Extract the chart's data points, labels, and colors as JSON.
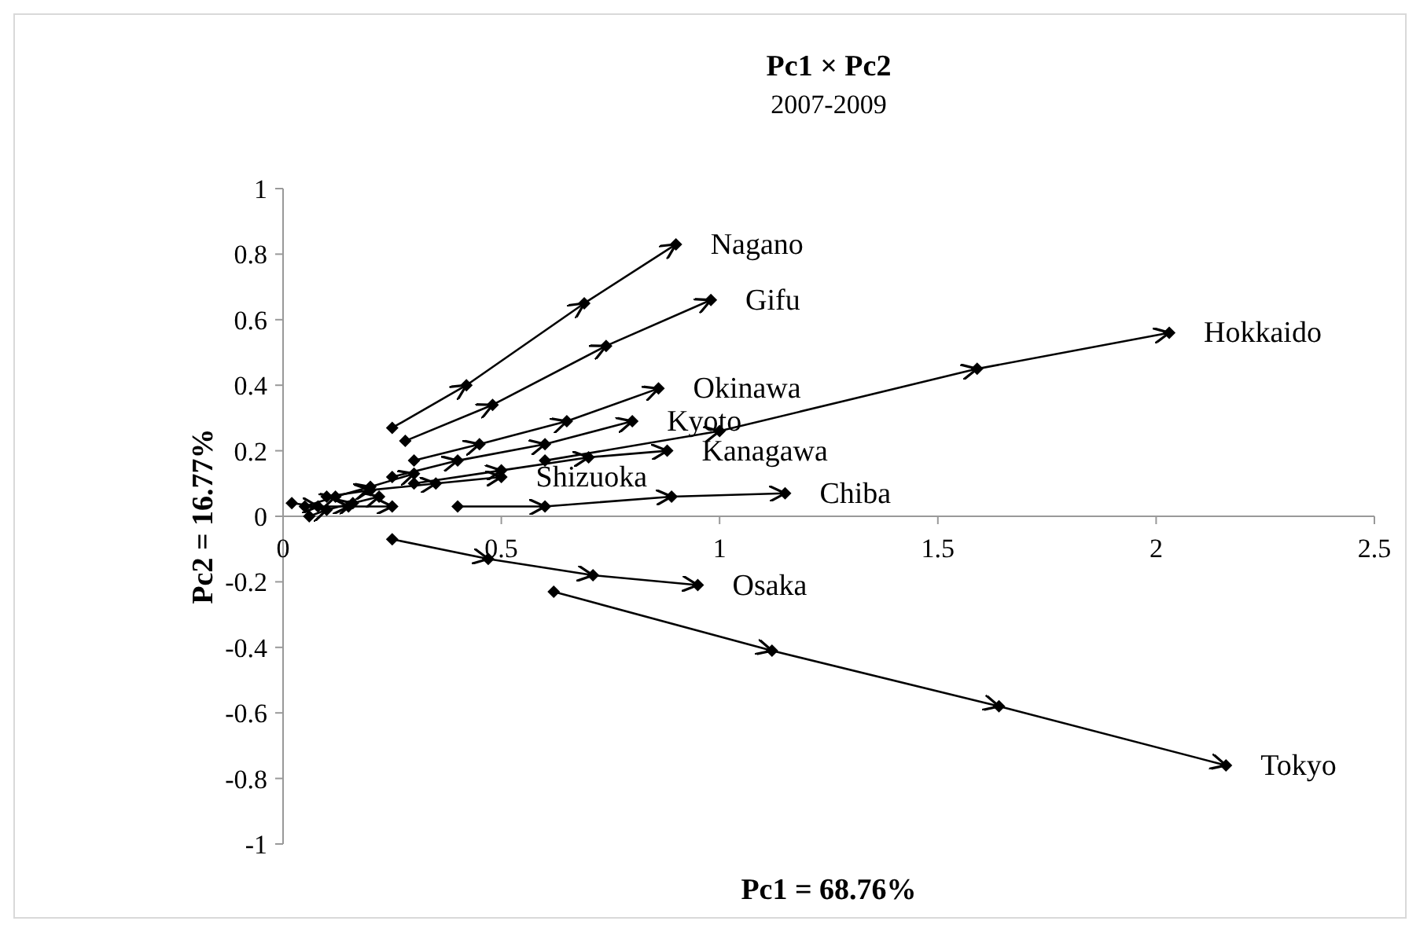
{
  "chart_data": {
    "type": "line",
    "title": "Pc1 × Pc2",
    "subtitle": "2007-2009",
    "xlabel": "Pc1 = 68.76%",
    "ylabel": "Pc2 = 16.77%",
    "xlim": [
      0,
      2.5
    ],
    "xticks": [
      0,
      0.5,
      1,
      1.5,
      2,
      2.5
    ],
    "ylim": [
      -1,
      1
    ],
    "yticks": [
      -1,
      -0.8,
      -0.6,
      -0.4,
      -0.2,
      0,
      0.2,
      0.4,
      0.6,
      0.8,
      1
    ],
    "marker": "diamond",
    "series": [
      {
        "name": "Nagano",
        "color": "#000000",
        "x": [
          0.25,
          0.42,
          0.69,
          0.9
        ],
        "values": [
          0.27,
          0.4,
          0.65,
          0.83
        ]
      },
      {
        "name": "Gifu",
        "color": "#000000",
        "x": [
          0.28,
          0.48,
          0.74,
          0.98
        ],
        "values": [
          0.23,
          0.34,
          0.52,
          0.66
        ]
      },
      {
        "name": "Hokkaido",
        "color": "#000000",
        "x": [
          0.6,
          1.0,
          1.59,
          2.03
        ],
        "values": [
          0.17,
          0.26,
          0.45,
          0.56
        ]
      },
      {
        "name": "Okinawa",
        "color": "#000000",
        "x": [
          0.3,
          0.45,
          0.65,
          0.86
        ],
        "values": [
          0.17,
          0.22,
          0.29,
          0.39
        ]
      },
      {
        "name": "Kyoto",
        "color": "#000000",
        "x": [
          0.25,
          0.4,
          0.6,
          0.8
        ],
        "values": [
          0.12,
          0.17,
          0.22,
          0.29
        ]
      },
      {
        "name": "Kanagawa",
        "color": "#000000",
        "x": [
          0.3,
          0.5,
          0.7,
          0.88
        ],
        "values": [
          0.1,
          0.14,
          0.18,
          0.2
        ]
      },
      {
        "name": "Shizuoka",
        "color": "#000000",
        "x": [
          0.1,
          0.2,
          0.35,
          0.5
        ],
        "values": [
          0.06,
          0.08,
          0.1,
          0.12
        ]
      },
      {
        "name": "Chiba",
        "color": "#000000",
        "x": [
          0.4,
          0.6,
          0.89,
          1.15
        ],
        "values": [
          0.03,
          0.03,
          0.06,
          0.07
        ]
      },
      {
        "name": "Osaka",
        "color": "#000000",
        "x": [
          0.25,
          0.47,
          0.71,
          0.95
        ],
        "values": [
          -0.07,
          -0.13,
          -0.18,
          -0.21
        ]
      },
      {
        "name": "Tokyo",
        "color": "#000000",
        "x": [
          0.62,
          1.12,
          1.64,
          2.16
        ],
        "values": [
          -0.23,
          -0.41,
          -0.58,
          -0.76
        ]
      },
      {
        "color": "#000000",
        "x": [
          0.02,
          0.08,
          0.15,
          0.25
        ],
        "values": [
          0.04,
          0.03,
          0.03,
          0.03
        ]
      },
      {
        "color": "#000000",
        "x": [
          0.05,
          0.12,
          0.2,
          0.3
        ],
        "values": [
          0.03,
          0.06,
          0.09,
          0.13
        ]
      },
      {
        "color": "#000000",
        "x": [
          0.06,
          0.1,
          0.16,
          0.22
        ],
        "values": [
          0.0,
          0.02,
          0.04,
          0.06
        ]
      }
    ]
  }
}
